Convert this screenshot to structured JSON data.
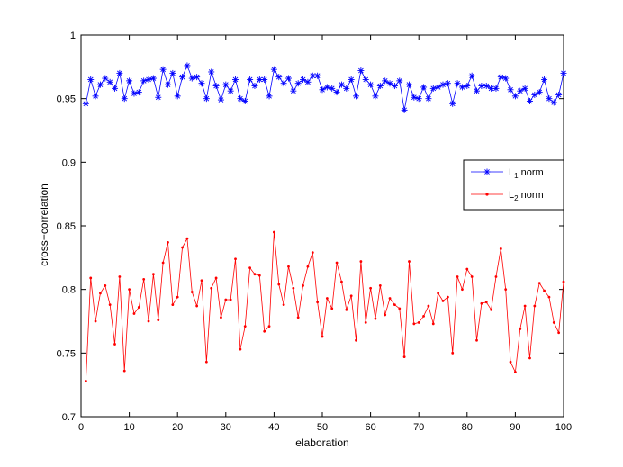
{
  "chart_data": {
    "type": "line",
    "title": "",
    "xlabel": "elaboration",
    "ylabel": "cross−correlation",
    "xlim": [
      0,
      100
    ],
    "ylim": [
      0.7,
      1
    ],
    "xticks": [
      0,
      10,
      20,
      30,
      40,
      50,
      60,
      70,
      80,
      90,
      100
    ],
    "yticks": [
      0.7,
      0.75,
      0.8,
      0.85,
      0.9,
      0.95,
      1
    ],
    "xtick_labels": [
      "0",
      "10",
      "20",
      "30",
      "40",
      "50",
      "60",
      "70",
      "80",
      "90",
      "100"
    ],
    "ytick_labels": [
      "0.7",
      "0.75",
      "0.8",
      "0.85",
      "0.9",
      "0.95",
      "1"
    ],
    "grid": false,
    "legend_position": "right",
    "x": [
      1,
      2,
      3,
      4,
      5,
      6,
      7,
      8,
      9,
      10,
      11,
      12,
      13,
      14,
      15,
      16,
      17,
      18,
      19,
      20,
      21,
      22,
      23,
      24,
      25,
      26,
      27,
      28,
      29,
      30,
      31,
      32,
      33,
      34,
      35,
      36,
      37,
      38,
      39,
      40,
      41,
      42,
      43,
      44,
      45,
      46,
      47,
      48,
      49,
      50,
      51,
      52,
      53,
      54,
      55,
      56,
      57,
      58,
      59,
      60,
      61,
      62,
      63,
      64,
      65,
      66,
      67,
      68,
      69,
      70,
      71,
      72,
      73,
      74,
      75,
      76,
      77,
      78,
      79,
      80,
      81,
      82,
      83,
      84,
      85,
      86,
      87,
      88,
      89,
      90,
      91,
      92,
      93,
      94,
      95,
      96,
      97,
      98,
      99,
      100
    ],
    "series": [
      {
        "name": "L1 norm",
        "legend_main": "L",
        "legend_sub": "1",
        "legend_rest": " norm",
        "color": "#0000ff",
        "marker": "asterisk",
        "values": [
          0.946,
          0.965,
          0.952,
          0.961,
          0.966,
          0.963,
          0.958,
          0.97,
          0.95,
          0.964,
          0.954,
          0.955,
          0.964,
          0.965,
          0.966,
          0.951,
          0.973,
          0.961,
          0.97,
          0.952,
          0.967,
          0.976,
          0.966,
          0.967,
          0.962,
          0.95,
          0.971,
          0.96,
          0.949,
          0.961,
          0.956,
          0.965,
          0.95,
          0.948,
          0.965,
          0.96,
          0.965,
          0.965,
          0.952,
          0.973,
          0.967,
          0.962,
          0.966,
          0.956,
          0.962,
          0.965,
          0.963,
          0.968,
          0.968,
          0.957,
          0.959,
          0.958,
          0.955,
          0.961,
          0.958,
          0.965,
          0.952,
          0.972,
          0.965,
          0.961,
          0.952,
          0.96,
          0.964,
          0.962,
          0.96,
          0.964,
          0.941,
          0.961,
          0.951,
          0.95,
          0.959,
          0.95,
          0.958,
          0.959,
          0.961,
          0.962,
          0.946,
          0.962,
          0.959,
          0.96,
          0.968,
          0.956,
          0.96,
          0.96,
          0.958,
          0.958,
          0.967,
          0.966,
          0.957,
          0.952,
          0.956,
          0.958,
          0.948,
          0.953,
          0.955,
          0.965,
          0.95,
          0.947,
          0.953,
          0.97
        ]
      },
      {
        "name": "L2 norm",
        "legend_main": "L",
        "legend_sub": "2",
        "legend_rest": " norm",
        "color": "#ff0000",
        "marker": "dot",
        "values": [
          0.728,
          0.809,
          0.775,
          0.797,
          0.803,
          0.788,
          0.757,
          0.81,
          0.736,
          0.8,
          0.781,
          0.786,
          0.808,
          0.775,
          0.812,
          0.776,
          0.821,
          0.837,
          0.788,
          0.794,
          0.833,
          0.84,
          0.798,
          0.787,
          0.807,
          0.743,
          0.801,
          0.809,
          0.778,
          0.792,
          0.792,
          0.824,
          0.753,
          0.771,
          0.817,
          0.812,
          0.811,
          0.767,
          0.771,
          0.845,
          0.804,
          0.788,
          0.818,
          0.801,
          0.778,
          0.803,
          0.818,
          0.829,
          0.79,
          0.763,
          0.793,
          0.785,
          0.821,
          0.806,
          0.784,
          0.795,
          0.76,
          0.822,
          0.774,
          0.801,
          0.777,
          0.803,
          0.78,
          0.793,
          0.788,
          0.785,
          0.747,
          0.822,
          0.773,
          0.774,
          0.779,
          0.787,
          0.773,
          0.797,
          0.791,
          0.794,
          0.75,
          0.81,
          0.8,
          0.816,
          0.81,
          0.76,
          0.789,
          0.79,
          0.784,
          0.81,
          0.832,
          0.8,
          0.743,
          0.735,
          0.769,
          0.787,
          0.746,
          0.787,
          0.805,
          0.799,
          0.794,
          0.774,
          0.766,
          0.806
        ]
      }
    ]
  }
}
